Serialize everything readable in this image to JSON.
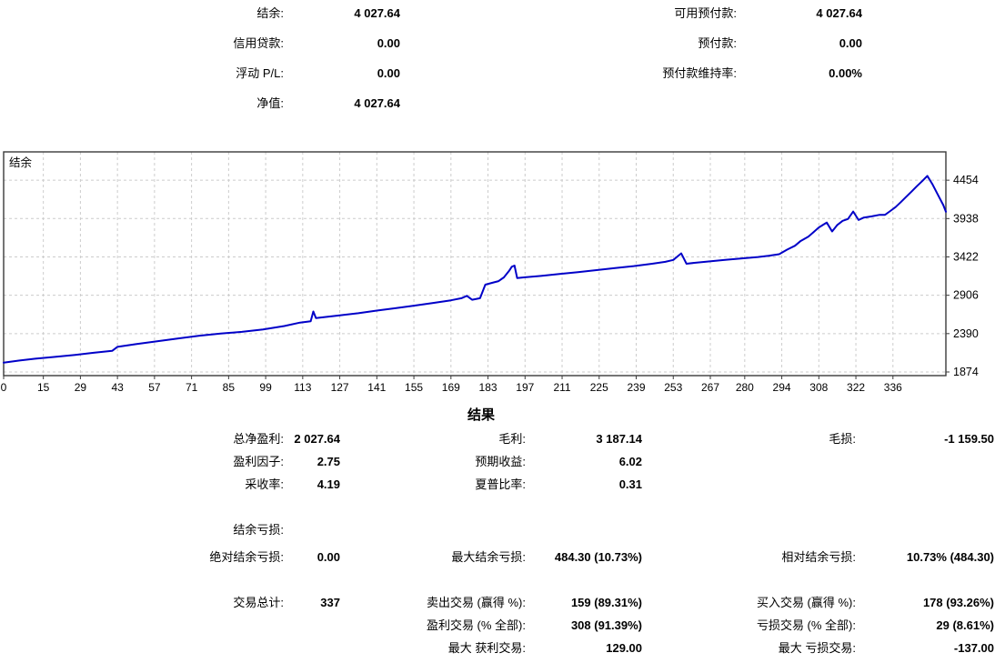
{
  "account_summary": {
    "rows": [
      {
        "label": "结余:",
        "value": "4 027.64",
        "label2": "可用预付款:",
        "value2": "4 027.64"
      },
      {
        "label": "信用贷款:",
        "value": "0.00",
        "label2": "预付款:",
        "value2": "0.00"
      },
      {
        "label": "浮动 P/L:",
        "value": "0.00",
        "label2": "预付款维持率:",
        "value2": "0.00%"
      },
      {
        "label": "净值:",
        "value": "4 027.64",
        "label2": "",
        "value2": ""
      }
    ]
  },
  "chart_data": {
    "type": "line",
    "title": "结余",
    "xlabel": "",
    "ylabel": "",
    "xlim": [
      0,
      356
    ],
    "ylim": [
      1825,
      4835
    ],
    "xticks": [
      0,
      15,
      29,
      43,
      57,
      71,
      85,
      99,
      113,
      127,
      141,
      155,
      169,
      183,
      197,
      211,
      225,
      239,
      253,
      267,
      280,
      294,
      308,
      322,
      336
    ],
    "yticks": [
      1874,
      2390,
      2906,
      3422,
      3938,
      4454
    ],
    "grid": true,
    "grid_color": "#cccccc",
    "border_color": "#3a3a3a",
    "legend_position": "top-left-inside",
    "series": [
      {
        "name": "结余",
        "color": "#0000C8",
        "points": [
          [
            0,
            2000
          ],
          [
            6,
            2028
          ],
          [
            12,
            2052
          ],
          [
            19,
            2076
          ],
          [
            27,
            2104
          ],
          [
            34,
            2132
          ],
          [
            41,
            2158
          ],
          [
            43,
            2212
          ],
          [
            50,
            2248
          ],
          [
            58,
            2288
          ],
          [
            66,
            2326
          ],
          [
            74,
            2362
          ],
          [
            82,
            2390
          ],
          [
            90,
            2414
          ],
          [
            98,
            2446
          ],
          [
            106,
            2492
          ],
          [
            112,
            2538
          ],
          [
            115,
            2552
          ],
          [
            116,
            2556
          ],
          [
            117,
            2688
          ],
          [
            118,
            2600
          ],
          [
            121,
            2612
          ],
          [
            127,
            2636
          ],
          [
            134,
            2664
          ],
          [
            141,
            2700
          ],
          [
            148,
            2732
          ],
          [
            155,
            2766
          ],
          [
            162,
            2800
          ],
          [
            169,
            2838
          ],
          [
            173,
            2866
          ],
          [
            175,
            2898
          ],
          [
            177,
            2846
          ],
          [
            180,
            2866
          ],
          [
            182,
            3048
          ],
          [
            185,
            3078
          ],
          [
            187,
            3096
          ],
          [
            189,
            3146
          ],
          [
            191,
            3234
          ],
          [
            192,
            3290
          ],
          [
            193,
            3306
          ],
          [
            194,
            3138
          ],
          [
            197,
            3148
          ],
          [
            203,
            3166
          ],
          [
            210,
            3192
          ],
          [
            217,
            3218
          ],
          [
            224,
            3244
          ],
          [
            231,
            3272
          ],
          [
            238,
            3298
          ],
          [
            245,
            3330
          ],
          [
            250,
            3356
          ],
          [
            253,
            3382
          ],
          [
            255,
            3440
          ],
          [
            256,
            3470
          ],
          [
            258,
            3330
          ],
          [
            261,
            3342
          ],
          [
            265,
            3356
          ],
          [
            269,
            3370
          ],
          [
            273,
            3384
          ],
          [
            277,
            3396
          ],
          [
            281,
            3408
          ],
          [
            285,
            3420
          ],
          [
            289,
            3436
          ],
          [
            293,
            3458
          ],
          [
            296,
            3520
          ],
          [
            299,
            3572
          ],
          [
            301,
            3632
          ],
          [
            304,
            3694
          ],
          [
            306,
            3756
          ],
          [
            308,
            3818
          ],
          [
            310,
            3862
          ],
          [
            311,
            3884
          ],
          [
            313,
            3764
          ],
          [
            315,
            3852
          ],
          [
            317,
            3908
          ],
          [
            319,
            3932
          ],
          [
            321,
            4032
          ],
          [
            323,
            3918
          ],
          [
            325,
            3952
          ],
          [
            328,
            3968
          ],
          [
            331,
            3988
          ],
          [
            333,
            3988
          ],
          [
            335,
            4040
          ],
          [
            337,
            4092
          ],
          [
            339,
            4160
          ],
          [
            341,
            4230
          ],
          [
            343,
            4300
          ],
          [
            345,
            4372
          ],
          [
            347,
            4440
          ],
          [
            349,
            4512
          ],
          [
            351,
            4396
          ],
          [
            353,
            4256
          ],
          [
            355,
            4120
          ],
          [
            356,
            4030
          ]
        ]
      }
    ]
  },
  "results": {
    "title": "结果",
    "stats": [
      {
        "row": 0,
        "col": 1,
        "label": "总净盈利:",
        "value": "2 027.64"
      },
      {
        "row": 0,
        "col": 2,
        "label": "毛利:",
        "value": "3 187.14"
      },
      {
        "row": 0,
        "col": 3,
        "label": "毛损:",
        "value": "-1 159.50"
      },
      {
        "row": 1,
        "col": 1,
        "label": "盈利因子:",
        "value": "2.75"
      },
      {
        "row": 1,
        "col": 2,
        "label": "预期收益:",
        "value": "6.02"
      },
      {
        "row": 2,
        "col": 1,
        "label": "采收率:",
        "value": "4.19"
      },
      {
        "row": 2,
        "col": 2,
        "label": "夏普比率:",
        "value": "0.31"
      },
      {
        "row": 3,
        "col": 1,
        "label": "结余亏损:",
        "value": ""
      },
      {
        "row": 4,
        "col": 1,
        "label": "绝对结余亏损:",
        "value": "0.00"
      },
      {
        "row": 4,
        "col": 2,
        "label": "最大结余亏损:",
        "value": "484.30 (10.73%)"
      },
      {
        "row": 4,
        "col": 3,
        "label": "相对结余亏损:",
        "value": "10.73% (484.30)"
      },
      {
        "row": 5,
        "col": 1,
        "label": "交易总计:",
        "value": "337"
      },
      {
        "row": 5,
        "col": 2,
        "label": "卖出交易 (赢得 %):",
        "value": "159 (89.31%)"
      },
      {
        "row": 5,
        "col": 3,
        "label": "买入交易 (赢得 %):",
        "value": "178 (93.26%)"
      },
      {
        "row": 6,
        "col": 2,
        "label": "盈利交易 (% 全部):",
        "value": "308 (91.39%)"
      },
      {
        "row": 6,
        "col": 3,
        "label": "亏损交易 (% 全部):",
        "value": "29 (8.61%)"
      },
      {
        "row": 7,
        "col": 2,
        "label": "最大 获利交易:",
        "value": "129.00"
      },
      {
        "row": 7,
        "col": 3,
        "label": "最大 亏损交易:",
        "value": "-137.00"
      }
    ]
  }
}
